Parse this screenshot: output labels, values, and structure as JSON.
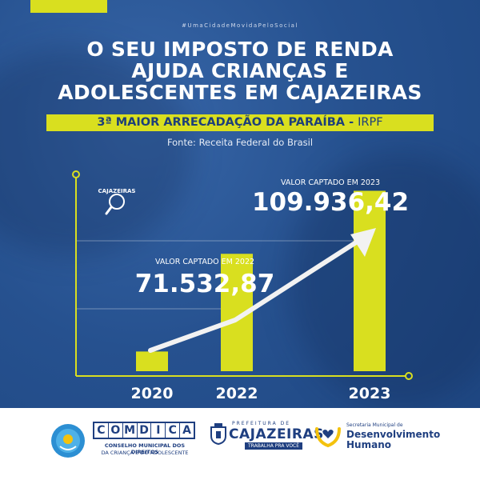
{
  "hashtag": "#UmaCidadeMovidaPeloSocial",
  "headline": [
    "O SEU IMPOSTO DE RENDA",
    "AJUDA CRIANÇAS E",
    "ADOLESCENTES EM CAJAZEIRAS"
  ],
  "ribbon": {
    "main": "3ª MAIOR ARRECADAÇÃO DA PARAÍBA - ",
    "suffix": "IRPF"
  },
  "source": "Fonte: Receita Federal do Brasil",
  "city_logo_text": "CAJAZEIRAS",
  "chart_data": {
    "type": "bar",
    "categories": [
      "2020",
      "2022",
      "2023"
    ],
    "values": [
      12000,
      71532.87,
      109936.42
    ],
    "annotations": [
      {
        "category": "2022",
        "label": "VALOR CAPTADO EM 2022",
        "value": "71.532,87"
      },
      {
        "category": "2023",
        "label": "VALOR CAPTADO EM 2023",
        "value": "109.936,42"
      }
    ],
    "grid": false,
    "colors": {
      "bar": "#d9df1f",
      "axis": "#d9df1f",
      "arrow": "#f2f2f2",
      "text": "#ffffff"
    }
  },
  "footer": {
    "comdica": {
      "letters": [
        "C",
        "O",
        "M",
        "D",
        "I",
        "C",
        "A"
      ],
      "line1": "CONSELHO MUNICIPAL DOS DIREITOS",
      "line2": "DA CRIANÇA E DO ADOLESCENTE"
    },
    "city": {
      "small": "PREFEITURA DE",
      "big": "CAJAZEIRAS",
      "slogan": "TRABALHA PRA VOCÊ"
    },
    "secretaria": {
      "small": "Secretaria Municipal de",
      "line1": "Desenvolvimento",
      "line2": "Humano"
    }
  },
  "colors": {
    "background": "#26518f",
    "accent": "#d9df1f",
    "navy": "#1f3f80"
  }
}
